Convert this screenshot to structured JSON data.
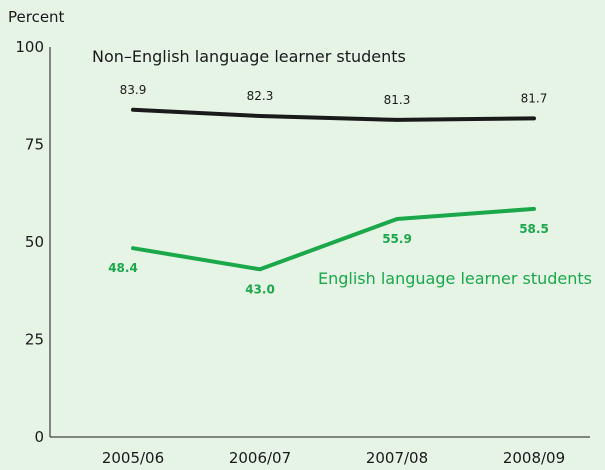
{
  "chart_data": {
    "type": "line",
    "ylabel": "Percent",
    "ylim": [
      0,
      100
    ],
    "yticks": [
      0,
      25,
      50,
      75,
      100
    ],
    "categories": [
      "2005/06",
      "2006/07",
      "2007/08",
      "2008/09"
    ],
    "series": [
      {
        "name": "Non–English language learner students",
        "values": [
          83.9,
          82.3,
          81.3,
          81.7
        ],
        "labels": [
          "83.9",
          "82.3",
          "81.3",
          "81.7"
        ],
        "color": "#1a1a1a"
      },
      {
        "name": "English language learner students",
        "values": [
          48.4,
          43.0,
          55.9,
          58.5
        ],
        "labels": [
          "48.4",
          "43.0",
          "55.9",
          "58.5"
        ],
        "color": "#1aa84b"
      }
    ],
    "grid": false,
    "background": "#e6f4e6"
  }
}
